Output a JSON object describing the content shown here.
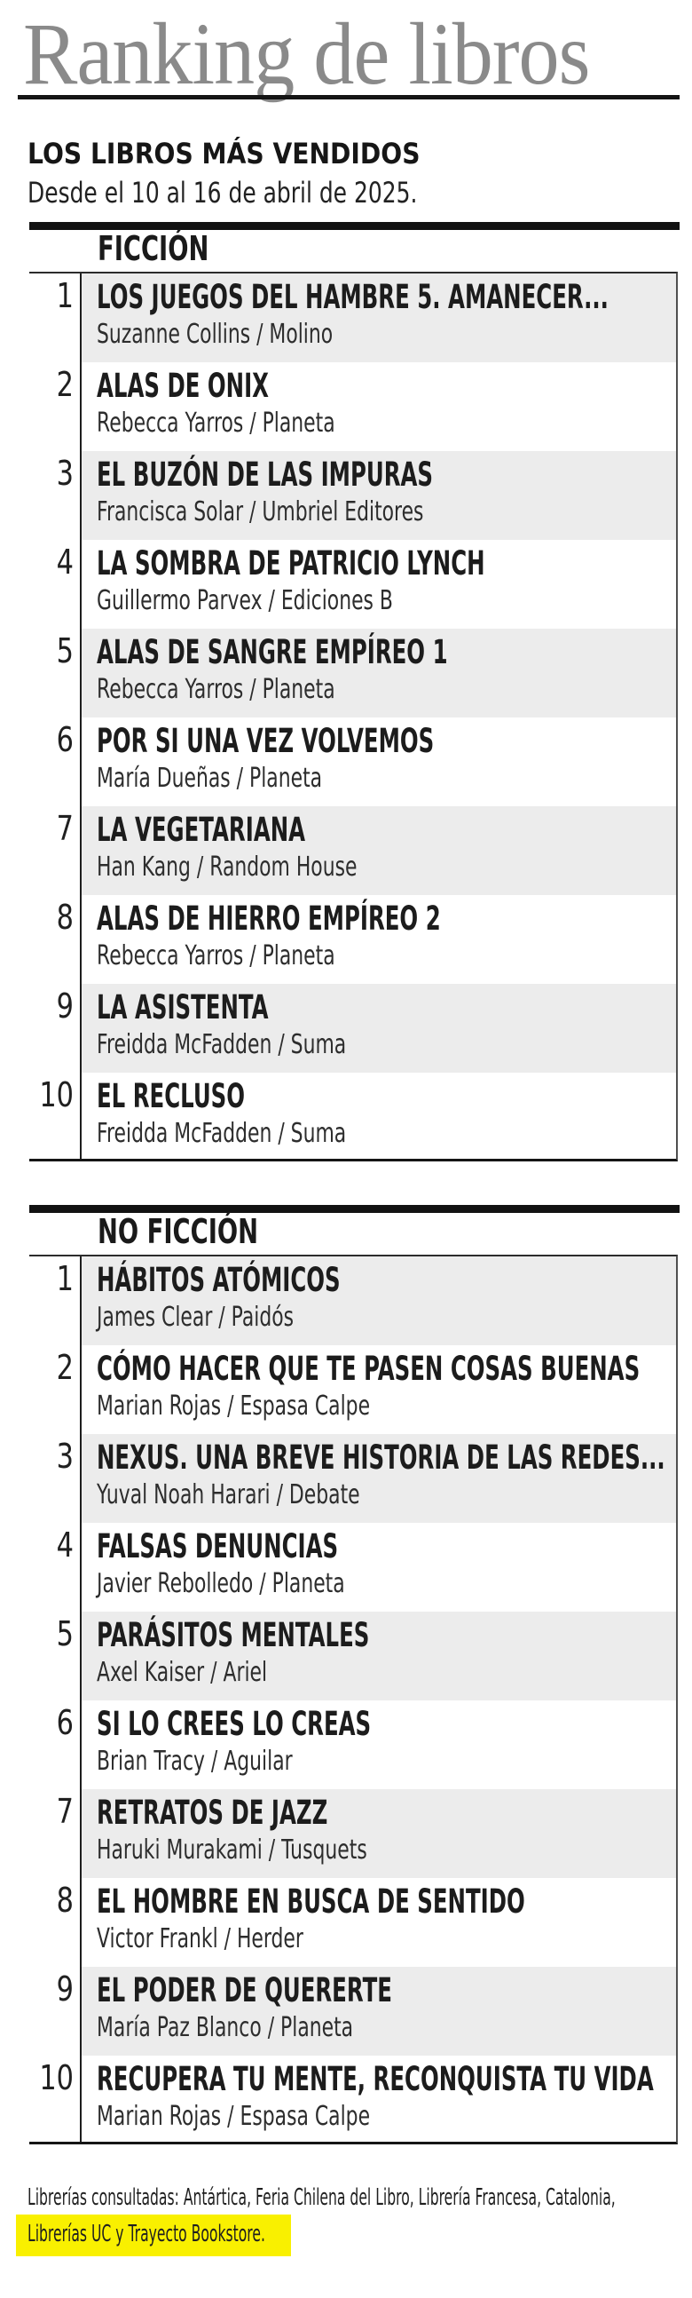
{
  "header": {
    "title": "Ranking de libros",
    "subtitle": "LOS LIBROS MÁS VENDIDOS",
    "date_range": "Desde el 10 al 16 de abril de 2025."
  },
  "sections": [
    {
      "label": "FICCIÓN",
      "books": [
        {
          "rank": "1",
          "title": "LOS JUEGOS DEL HAMBRE 5. AMANECER...",
          "author_publisher": "Suzanne Collins / Molino"
        },
        {
          "rank": "2",
          "title": "ALAS DE ONIX",
          "author_publisher": "Rebecca Yarros / Planeta"
        },
        {
          "rank": "3",
          "title": "EL BUZÓN DE LAS IMPURAS",
          "author_publisher": "Francisca Solar / Umbriel Editores"
        },
        {
          "rank": "4",
          "title": "LA SOMBRA DE PATRICIO LYNCH",
          "author_publisher": "Guillermo Parvex / Ediciones B"
        },
        {
          "rank": "5",
          "title": "ALAS DE SANGRE EMPÍREO 1",
          "author_publisher": "Rebecca Yarros / Planeta"
        },
        {
          "rank": "6",
          "title": "POR SI UNA VEZ VOLVEMOS",
          "author_publisher": "María Dueñas / Planeta"
        },
        {
          "rank": "7",
          "title": "LA VEGETARIANA",
          "author_publisher": "Han Kang / Random House"
        },
        {
          "rank": "8",
          "title": "ALAS DE HIERRO EMPÍREO 2",
          "author_publisher": "Rebecca Yarros / Planeta"
        },
        {
          "rank": "9",
          "title": "LA ASISTENTA",
          "author_publisher": "Freidda McFadden / Suma"
        },
        {
          "rank": "10",
          "title": "EL RECLUSO",
          "author_publisher": "Freidda McFadden / Suma"
        }
      ]
    },
    {
      "label": "NO FICCIÓN",
      "books": [
        {
          "rank": "1",
          "title": "HÁBITOS ATÓMICOS",
          "author_publisher": "James Clear / Paidós"
        },
        {
          "rank": "2",
          "title": "CÓMO HACER QUE TE PASEN COSAS BUENAS",
          "author_publisher": "Marian Rojas / Espasa Calpe"
        },
        {
          "rank": "3",
          "title": "NEXUS. UNA BREVE HISTORIA DE LAS REDES...",
          "author_publisher": "Yuval Noah Harari / Debate"
        },
        {
          "rank": "4",
          "title": "FALSAS DENUNCIAS",
          "author_publisher": "Javier Rebolledo / Planeta"
        },
        {
          "rank": "5",
          "title": "PARÁSITOS MENTALES",
          "author_publisher": "Axel Kaiser / Ariel"
        },
        {
          "rank": "6",
          "title": "SI LO CREES LO CREAS",
          "author_publisher": "Brian Tracy / Aguilar"
        },
        {
          "rank": "7",
          "title": "RETRATOS DE JAZZ",
          "author_publisher": "Haruki Murakami / Tusquets"
        },
        {
          "rank": "8",
          "title": "EL HOMBRE EN BUSCA DE SENTIDO",
          "author_publisher": "Victor Frankl / Herder"
        },
        {
          "rank": "9",
          "title": "EL PODER DE QUERERTE",
          "author_publisher": "María Paz Blanco / Planeta"
        },
        {
          "rank": "10",
          "title": "RECUPERA TU MENTE, RECONQUISTA TU VIDA",
          "author_publisher": "Marian Rojas / Espasa Calpe"
        }
      ]
    }
  ],
  "footer": {
    "line1": "Librerías consultadas: Antártica, Feria Chilena del Libro, Librería Francesa, Catalonia,",
    "line2_highlighted": "Librerías UC y Trayecto Bookstore."
  },
  "colors": {
    "title_gray": "#8a8a8a",
    "row_shade": "#ececec",
    "highlight_yellow": "#f9f000",
    "rule_black": "#141414"
  }
}
